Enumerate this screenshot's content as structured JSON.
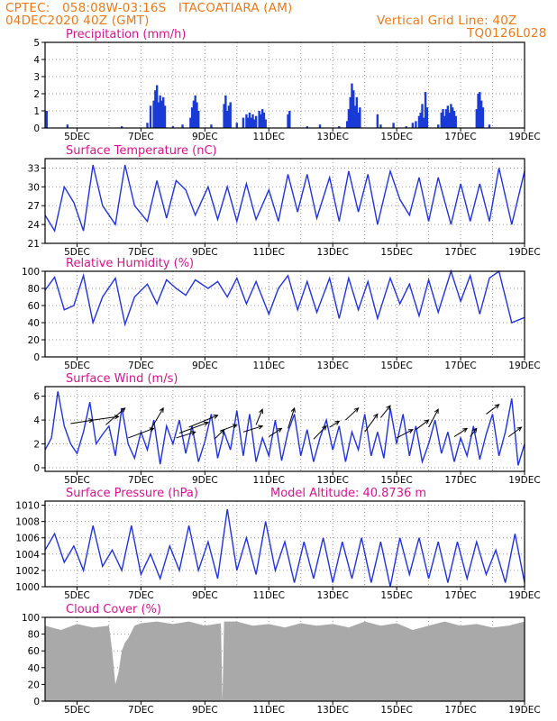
{
  "header": {
    "line1_left": "CPTEC:   058:08W-03:16S   ITACOATIARA (AM)",
    "line2_left": "04DEC2020 40Z (GMT)",
    "line1_right": "Vertical Grid Line: 40Z",
    "line2_right": "TQ0126L028"
  },
  "colors": {
    "title": "#d4148c",
    "header": "#e87a1c",
    "line": "#2233dd",
    "bars": "#1a3ad6",
    "cloud": "#a9a9a9",
    "grid": "#9a9a9a"
  },
  "x_ticks": [
    "5DEC",
    "7DEC",
    "9DEC",
    "11DEC",
    "13DEC",
    "15DEC",
    "17DEC",
    "19DEC"
  ],
  "chart_data": [
    {
      "type": "bar",
      "title": "Precipitation (mm/h)",
      "ylim": [
        0,
        5
      ],
      "yticks": [
        "0",
        "1",
        "2",
        "3",
        "4",
        "5"
      ],
      "x_unit": "day of Dec 2020",
      "xlim": [
        4.0,
        19.0
      ],
      "bars": [
        [
          4.05,
          1.0
        ],
        [
          4.7,
          0.2
        ],
        [
          6.4,
          0.1
        ],
        [
          7.2,
          0.3
        ],
        [
          7.3,
          1.3
        ],
        [
          7.4,
          1.6
        ],
        [
          7.45,
          2.2
        ],
        [
          7.5,
          2.5
        ],
        [
          7.55,
          1.5
        ],
        [
          7.6,
          1.9
        ],
        [
          7.65,
          1.6
        ],
        [
          7.7,
          1.8
        ],
        [
          7.75,
          1.3
        ],
        [
          8.0,
          0.1
        ],
        [
          8.3,
          0.2
        ],
        [
          8.55,
          0.6
        ],
        [
          8.6,
          1.2
        ],
        [
          8.65,
          1.6
        ],
        [
          8.7,
          1.9
        ],
        [
          8.75,
          1.5
        ],
        [
          8.8,
          1.0
        ],
        [
          9.2,
          0.2
        ],
        [
          9.6,
          1.4
        ],
        [
          9.65,
          1.9
        ],
        [
          9.7,
          1.0
        ],
        [
          9.75,
          1.3
        ],
        [
          9.8,
          1.5
        ],
        [
          10.0,
          0.3
        ],
        [
          10.2,
          0.6
        ],
        [
          10.3,
          0.8
        ],
        [
          10.35,
          0.6
        ],
        [
          10.4,
          0.9
        ],
        [
          10.45,
          0.6
        ],
        [
          10.5,
          0.8
        ],
        [
          10.55,
          0.5
        ],
        [
          10.6,
          0.7
        ],
        [
          10.7,
          1.0
        ],
        [
          10.75,
          0.8
        ],
        [
          10.8,
          1.1
        ],
        [
          10.85,
          0.9
        ],
        [
          10.9,
          0.5
        ],
        [
          11.6,
          0.8
        ],
        [
          11.65,
          1.0
        ],
        [
          12.2,
          0.1
        ],
        [
          12.6,
          0.2
        ],
        [
          13.2,
          0.1
        ],
        [
          13.45,
          0.4
        ],
        [
          13.5,
          1.1
        ],
        [
          13.55,
          1.8
        ],
        [
          13.6,
          2.6
        ],
        [
          13.65,
          2.2
        ],
        [
          13.7,
          1.3
        ],
        [
          13.75,
          1.8
        ],
        [
          13.8,
          0.9
        ],
        [
          13.85,
          1.2
        ],
        [
          14.4,
          0.8
        ],
        [
          14.5,
          0.2
        ],
        [
          14.9,
          0.3
        ],
        [
          15.3,
          0.1
        ],
        [
          15.5,
          0.3
        ],
        [
          15.6,
          0.4
        ],
        [
          15.7,
          0.7
        ],
        [
          15.75,
          0.9
        ],
        [
          15.8,
          1.4
        ],
        [
          15.85,
          0.6
        ],
        [
          15.9,
          2.1
        ],
        [
          15.95,
          1.2
        ],
        [
          16.3,
          0.2
        ],
        [
          16.4,
          0.9
        ],
        [
          16.45,
          1.1
        ],
        [
          16.5,
          0.7
        ],
        [
          16.55,
          1.1
        ],
        [
          16.6,
          1.3
        ],
        [
          16.65,
          0.9
        ],
        [
          16.7,
          1.4
        ],
        [
          16.75,
          1.2
        ],
        [
          16.8,
          1.0
        ],
        [
          16.85,
          0.7
        ],
        [
          17.5,
          1.1
        ],
        [
          17.55,
          2.0
        ],
        [
          17.6,
          2.1
        ],
        [
          17.65,
          1.6
        ],
        [
          17.7,
          1.2
        ],
        [
          17.9,
          0.2
        ]
      ]
    },
    {
      "type": "line",
      "title": "Surface Temperature (nC)",
      "ylim": [
        21,
        34.5
      ],
      "yticks": [
        "21",
        "24",
        "27",
        "30",
        "33"
      ],
      "x": [
        4.0,
        4.3,
        4.6,
        4.9,
        5.2,
        5.5,
        5.8,
        6.2,
        6.5,
        6.8,
        7.2,
        7.5,
        7.8,
        8.1,
        8.4,
        8.7,
        9.1,
        9.4,
        9.7,
        10.0,
        10.3,
        10.6,
        11.0,
        11.3,
        11.6,
        11.9,
        12.2,
        12.5,
        12.9,
        13.2,
        13.5,
        13.8,
        14.1,
        14.4,
        14.8,
        15.1,
        15.4,
        15.7,
        16.0,
        16.3,
        16.7,
        17.0,
        17.3,
        17.6,
        17.9,
        18.2,
        18.6,
        19.0
      ],
      "values": [
        25.5,
        23.0,
        30.0,
        27.5,
        23.0,
        33.5,
        27.0,
        24.0,
        33.5,
        27.0,
        24.5,
        31.0,
        25.0,
        31.0,
        29.5,
        25.5,
        30.0,
        24.8,
        30.0,
        24.5,
        30.5,
        24.8,
        29.5,
        24.5,
        32.0,
        26.0,
        32.0,
        25.0,
        31.5,
        24.5,
        32.5,
        26.0,
        32.0,
        24.0,
        32.5,
        28.0,
        25.5,
        31.5,
        24.5,
        31.5,
        24.0,
        30.5,
        24.5,
        30.5,
        24.5,
        33.0,
        24.0,
        32.5
      ]
    },
    {
      "type": "line",
      "title": "Relative Humidity (%)",
      "ylim": [
        0,
        100
      ],
      "yticks": [
        "0",
        "20",
        "40",
        "60",
        "80",
        "100"
      ],
      "x": [
        4.0,
        4.3,
        4.6,
        4.9,
        5.2,
        5.5,
        5.8,
        6.2,
        6.5,
        6.8,
        7.2,
        7.5,
        7.8,
        8.1,
        8.4,
        8.7,
        9.1,
        9.4,
        9.7,
        10.0,
        10.3,
        10.6,
        11.0,
        11.3,
        11.6,
        11.9,
        12.2,
        12.5,
        12.9,
        13.2,
        13.5,
        13.8,
        14.1,
        14.4,
        14.8,
        15.1,
        15.4,
        15.7,
        16.0,
        16.3,
        16.7,
        17.0,
        17.3,
        17.6,
        17.9,
        18.2,
        18.6,
        19.0
      ],
      "values": [
        78,
        93,
        55,
        60,
        95,
        40,
        70,
        92,
        38,
        70,
        85,
        62,
        90,
        80,
        72,
        90,
        80,
        88,
        70,
        92,
        62,
        88,
        50,
        80,
        95,
        55,
        88,
        52,
        92,
        45,
        92,
        55,
        88,
        45,
        92,
        62,
        85,
        48,
        90,
        52,
        100,
        65,
        95,
        50,
        92,
        100,
        40,
        46
      ]
    },
    {
      "type": "line",
      "title": "Surface Wind (m/s)",
      "ylim": [
        -0.3,
        6.8
      ],
      "yticks": [
        "0",
        "2",
        "4",
        "6"
      ],
      "x": [
        4.0,
        4.2,
        4.4,
        4.6,
        4.8,
        5.0,
        5.2,
        5.4,
        5.6,
        5.8,
        6.0,
        6.2,
        6.4,
        6.6,
        6.8,
        7.0,
        7.2,
        7.4,
        7.6,
        7.8,
        8.0,
        8.2,
        8.4,
        8.6,
        8.8,
        9.0,
        9.2,
        9.4,
        9.6,
        9.8,
        10.0,
        10.2,
        10.4,
        10.6,
        10.8,
        11.0,
        11.2,
        11.4,
        11.6,
        11.8,
        12.0,
        12.2,
        12.4,
        12.6,
        12.8,
        13.0,
        13.2,
        13.4,
        13.6,
        13.8,
        14.0,
        14.2,
        14.4,
        14.6,
        14.8,
        15.0,
        15.2,
        15.4,
        15.6,
        15.8,
        16.0,
        16.2,
        16.4,
        16.6,
        16.8,
        17.0,
        17.2,
        17.4,
        17.6,
        17.8,
        18.0,
        18.2,
        18.4,
        18.6,
        18.8,
        19.0
      ],
      "values": [
        1.5,
        2.5,
        6.4,
        3.5,
        2.0,
        1.2,
        3.0,
        5.5,
        2.0,
        2.8,
        3.5,
        1.0,
        5.0,
        2.0,
        0.8,
        3.0,
        1.5,
        4.0,
        0.3,
        3.5,
        2.0,
        4.0,
        1.2,
        3.5,
        0.5,
        2.2,
        4.5,
        0.8,
        3.0,
        1.5,
        4.8,
        1.0,
        4.5,
        0.5,
        2.5,
        1.0,
        4.0,
        0.6,
        3.0,
        4.5,
        1.0,
        3.2,
        0.5,
        2.5,
        4.0,
        1.5,
        3.5,
        0.5,
        3.0,
        1.5,
        4.5,
        1.0,
        3.0,
        0.8,
        5.0,
        2.0,
        4.5,
        1.0,
        3.5,
        0.5,
        2.0,
        4.0,
        1.2,
        3.0,
        0.5,
        2.5,
        1.0,
        3.5,
        0.7,
        2.8,
        4.5,
        1.0,
        3.0,
        5.8,
        0.2,
        2.0
      ],
      "wind_arrows": [
        [
          4.8,
          3.7,
          5.5,
          4.0
        ],
        [
          5.5,
          4.0,
          6.3,
          4.3
        ],
        [
          5.9,
          3.6,
          6.5,
          5.0
        ],
        [
          6.6,
          2.5,
          7.4,
          3.3
        ],
        [
          7.3,
          3.2,
          7.7,
          5.0
        ],
        [
          8.1,
          2.5,
          8.7,
          3.0
        ],
        [
          8.2,
          2.9,
          9.1,
          3.8
        ],
        [
          8.5,
          3.4,
          9.4,
          4.4
        ],
        [
          9.3,
          2.4,
          9.6,
          3.2
        ],
        [
          9.5,
          3.1,
          10.0,
          3.6
        ],
        [
          10.2,
          3.0,
          10.8,
          3.5
        ],
        [
          10.6,
          3.6,
          10.8,
          4.9
        ],
        [
          11.0,
          2.6,
          11.4,
          3.3
        ],
        [
          11.6,
          3.3,
          11.8,
          5.0
        ],
        [
          12.4,
          2.4,
          12.8,
          3.5
        ],
        [
          12.9,
          3.4,
          13.2,
          3.9
        ],
        [
          13.4,
          4.0,
          13.8,
          5.0
        ],
        [
          14.0,
          3.0,
          14.4,
          4.5
        ],
        [
          14.5,
          4.2,
          14.8,
          5.2
        ],
        [
          15.0,
          2.5,
          15.5,
          3.2
        ],
        [
          15.6,
          3.2,
          16.0,
          4.0
        ],
        [
          16.0,
          3.4,
          16.3,
          4.9
        ],
        [
          16.8,
          2.6,
          17.2,
          3.3
        ],
        [
          17.3,
          2.6,
          17.5,
          3.3
        ],
        [
          17.8,
          4.5,
          18.2,
          5.3
        ],
        [
          18.5,
          2.6,
          18.9,
          3.4
        ]
      ]
    },
    {
      "type": "line",
      "title": "Surface Pressure (hPa)",
      "annotation": "Model Altitude: 40.8736 m",
      "ylim": [
        1000,
        1010.5
      ],
      "yticks": [
        "1000",
        "1002",
        "1004",
        "1006",
        "1008",
        "1010"
      ],
      "x": [
        4.0,
        4.3,
        4.6,
        4.9,
        5.2,
        5.5,
        5.8,
        6.1,
        6.4,
        6.7,
        7.0,
        7.3,
        7.6,
        7.9,
        8.2,
        8.5,
        8.8,
        9.1,
        9.4,
        9.7,
        10.0,
        10.3,
        10.6,
        10.9,
        11.2,
        11.5,
        11.8,
        12.1,
        12.4,
        12.7,
        13.0,
        13.3,
        13.6,
        13.9,
        14.2,
        14.5,
        14.8,
        15.1,
        15.4,
        15.7,
        16.0,
        16.3,
        16.6,
        16.9,
        17.2,
        17.5,
        17.8,
        18.1,
        18.4,
        18.7,
        19.0
      ],
      "values": [
        1004.5,
        1006.5,
        1003.0,
        1005.0,
        1002.0,
        1007.5,
        1002.5,
        1004.5,
        1002.0,
        1007.5,
        1001.5,
        1004.0,
        1001.0,
        1005.0,
        1002.0,
        1007.5,
        1002.0,
        1005.5,
        1001.0,
        1009.5,
        1002.0,
        1006.0,
        1001.5,
        1008.0,
        1002.0,
        1005.5,
        1000.5,
        1005.5,
        1001.0,
        1006.0,
        1000.5,
        1005.5,
        1001.0,
        1006.0,
        1000.5,
        1005.5,
        1000.0,
        1006.0,
        1001.5,
        1006.0,
        1001.0,
        1005.5,
        1000.5,
        1005.5,
        1001.0,
        1005.5,
        1001.5,
        1004.5,
        1000.5,
        1006.5,
        1000.5
      ]
    },
    {
      "type": "area",
      "title": "Cloud Cover (%)",
      "ylim": [
        0,
        100
      ],
      "yticks": [
        "0",
        "20",
        "40",
        "60",
        "80",
        "100"
      ],
      "x": [
        4.0,
        4.5,
        5.0,
        5.5,
        6.0,
        6.1,
        6.2,
        6.3,
        6.4,
        6.5,
        6.6,
        6.8,
        7.0,
        7.5,
        8.0,
        8.5,
        9.0,
        9.5,
        9.55,
        9.6,
        10.0,
        10.5,
        11.0,
        11.5,
        12.0,
        12.5,
        13.0,
        13.5,
        14.0,
        14.5,
        15.0,
        15.5,
        16.0,
        16.5,
        17.0,
        17.5,
        18.0,
        18.5,
        19.0
      ],
      "values": [
        90,
        85,
        92,
        88,
        90,
        60,
        20,
        35,
        60,
        70,
        75,
        90,
        93,
        95,
        92,
        95,
        90,
        93,
        0,
        95,
        95,
        90,
        92,
        88,
        93,
        90,
        92,
        88,
        95,
        90,
        93,
        85,
        90,
        95,
        90,
        92,
        88,
        90,
        95
      ]
    }
  ]
}
